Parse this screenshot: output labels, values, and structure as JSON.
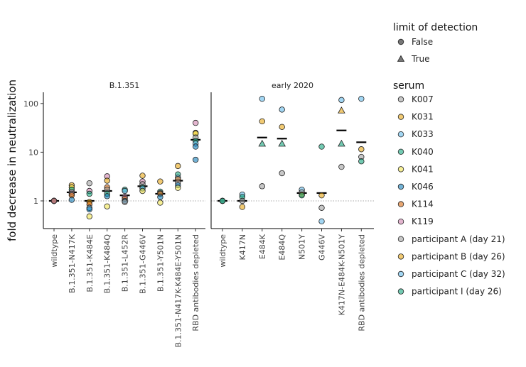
{
  "chart_data": {
    "type": "scatter",
    "ylabel": "fold decrease in neutralization",
    "yscale": "log",
    "ylim": [
      0.27,
      170
    ],
    "yticks": [
      1,
      10,
      100
    ],
    "ytick_labels": [
      "1",
      "10",
      "100"
    ],
    "reference_line_y": 1,
    "legend_position": "right",
    "legends": [
      {
        "title": "limit of detection",
        "entries": [
          {
            "label": "False",
            "shape": "circle"
          },
          {
            "label": "True",
            "shape": "triangle"
          }
        ]
      },
      {
        "title": "serum",
        "entries": [
          {
            "label": "K007",
            "color": "#999999"
          },
          {
            "label": "K031",
            "color": "#E69F00"
          },
          {
            "label": "K033",
            "color": "#56B4E9"
          },
          {
            "label": "K040",
            "color": "#009E73"
          },
          {
            "label": "K041",
            "color": "#F0E442"
          },
          {
            "label": "K046",
            "color": "#0072B2"
          },
          {
            "label": "K114",
            "color": "#D55E00"
          },
          {
            "label": "K119",
            "color": "#CC79A7"
          },
          {
            "label": "participant A (day 21)",
            "color": "#999999"
          },
          {
            "label": "participant B (day 26)",
            "color": "#E69F00"
          },
          {
            "label": "participant C (day 32)",
            "color": "#56B4E9"
          },
          {
            "label": "participant I (day 26)",
            "color": "#009E73"
          }
        ]
      }
    ],
    "facets": [
      {
        "title": "B.1.351",
        "categories": [
          "wildtype",
          "B.1.351-N417K",
          "B.1.351-K484E",
          "B.1.351-K484Q",
          "B.1.351-L452R",
          "B.1.351-G446V",
          "B.1.351-Y501N",
          "B.1.351-N417K-K484E-Y501N",
          "RBD antibodies depleted"
        ],
        "medians": [
          1.0,
          1.5,
          1.0,
          1.6,
          1.3,
          2.0,
          1.4,
          2.6,
          18
        ],
        "points": [
          [
            "wildtype",
            "K007",
            1.0,
            false
          ],
          [
            "wildtype",
            "K031",
            1.0,
            false
          ],
          [
            "wildtype",
            "K033",
            1.0,
            false
          ],
          [
            "wildtype",
            "K040",
            1.0,
            false
          ],
          [
            "wildtype",
            "K041",
            1.0,
            false
          ],
          [
            "wildtype",
            "K046",
            1.0,
            false
          ],
          [
            "wildtype",
            "K114",
            1.0,
            false
          ],
          [
            "wildtype",
            "K119",
            1.0,
            false
          ],
          [
            "B.1.351-N417K",
            "K031",
            2.1,
            false
          ],
          [
            "B.1.351-N417K",
            "K041",
            1.9,
            false
          ],
          [
            "B.1.351-N417K",
            "K040",
            1.7,
            false
          ],
          [
            "B.1.351-N417K",
            "K119",
            1.5,
            false
          ],
          [
            "B.1.351-N417K",
            "K007",
            1.4,
            false
          ],
          [
            "B.1.351-N417K",
            "K114",
            1.3,
            false
          ],
          [
            "B.1.351-N417K",
            "K046",
            1.05,
            false
          ],
          [
            "B.1.351-K484E",
            "K007",
            2.3,
            false
          ],
          [
            "B.1.351-K484E",
            "K119",
            1.6,
            false
          ],
          [
            "B.1.351-K484E",
            "K040",
            1.4,
            false
          ],
          [
            "B.1.351-K484E",
            "K031",
            0.95,
            false
          ],
          [
            "B.1.351-K484E",
            "K114",
            0.85,
            false
          ],
          [
            "B.1.351-K484E",
            "K033",
            0.72,
            false
          ],
          [
            "B.1.351-K484E",
            "K046",
            0.67,
            false
          ],
          [
            "B.1.351-K484E",
            "K041",
            0.48,
            false
          ],
          [
            "B.1.351-K484Q",
            "K119",
            3.2,
            false
          ],
          [
            "B.1.351-K484Q",
            "K031",
            2.6,
            false
          ],
          [
            "B.1.351-K484Q",
            "K114",
            1.9,
            false
          ],
          [
            "B.1.351-K484Q",
            "K007",
            1.7,
            false
          ],
          [
            "B.1.351-K484Q",
            "K040",
            1.4,
            false
          ],
          [
            "B.1.351-K484Q",
            "K046",
            1.25,
            false
          ],
          [
            "B.1.351-K484Q",
            "K041",
            0.77,
            false
          ],
          [
            "B.1.351-L452R",
            "K040",
            1.7,
            false
          ],
          [
            "B.1.351-L452R",
            "K033",
            1.6,
            false
          ],
          [
            "B.1.351-L452R",
            "K119",
            1.2,
            false
          ],
          [
            "B.1.351-L452R",
            "K114",
            1.1,
            false
          ],
          [
            "B.1.351-L452R",
            "K046",
            1.0,
            false
          ],
          [
            "B.1.351-L452R",
            "K007",
            0.95,
            false
          ],
          [
            "B.1.351-G446V",
            "K031",
            3.3,
            false
          ],
          [
            "B.1.351-G446V",
            "K119",
            2.5,
            false
          ],
          [
            "B.1.351-G446V",
            "K007",
            2.2,
            false
          ],
          [
            "B.1.351-G446V",
            "K040",
            1.9,
            false
          ],
          [
            "B.1.351-G446V",
            "K033",
            1.8,
            false
          ],
          [
            "B.1.351-G446V",
            "K041",
            1.6,
            false
          ],
          [
            "B.1.351-Y501N",
            "K031",
            2.5,
            false
          ],
          [
            "B.1.351-Y501N",
            "K040",
            1.55,
            false
          ],
          [
            "B.1.351-Y501N",
            "K007",
            1.45,
            false
          ],
          [
            "B.1.351-Y501N",
            "K114",
            1.4,
            false
          ],
          [
            "B.1.351-Y501N",
            "K046",
            1.2,
            false
          ],
          [
            "B.1.351-Y501N",
            "K041",
            0.92,
            false
          ],
          [
            "B.1.351-N417K-K484E-Y501N",
            "K031",
            5.2,
            false
          ],
          [
            "B.1.351-N417K-K484E-Y501N",
            "K040",
            3.5,
            false
          ],
          [
            "B.1.351-N417K-K484E-Y501N",
            "K033",
            3.0,
            false
          ],
          [
            "B.1.351-N417K-K484E-Y501N",
            "K114",
            2.8,
            false
          ],
          [
            "B.1.351-N417K-K484E-Y501N",
            "K007",
            2.4,
            false
          ],
          [
            "B.1.351-N417K-K484E-Y501N",
            "K046",
            2.1,
            false
          ],
          [
            "B.1.351-N417K-K484E-Y501N",
            "K041",
            1.85,
            false
          ],
          [
            "RBD antibodies depleted",
            "K119",
            40,
            false
          ],
          [
            "RBD antibodies depleted",
            "K031",
            25,
            false
          ],
          [
            "RBD antibodies depleted",
            "K041",
            24,
            false
          ],
          [
            "RBD antibodies depleted",
            "K007",
            20,
            false
          ],
          [
            "RBD antibodies depleted",
            "K040",
            17,
            false
          ],
          [
            "RBD antibodies depleted",
            "K033",
            15,
            false
          ],
          [
            "RBD antibodies depleted",
            "K046",
            13,
            false
          ],
          [
            "RBD antibodies depleted",
            "K046",
            7,
            false
          ]
        ]
      },
      {
        "title": "early 2020",
        "categories": [
          "wildtype",
          "K417N",
          "E484K",
          "E484Q",
          "N501Y",
          "G446V",
          "K417N-E484K-N501Y",
          "RBD antibodies depleted"
        ],
        "medians": [
          1.0,
          1.0,
          20,
          19,
          1.45,
          1.45,
          28,
          16
        ],
        "points": [
          [
            "wildtype",
            "participant A (day 21)",
            1.0,
            false
          ],
          [
            "wildtype",
            "participant B (day 26)",
            1.0,
            false
          ],
          [
            "wildtype",
            "participant C (day 32)",
            1.0,
            false
          ],
          [
            "wildtype",
            "participant I (day 26)",
            1.0,
            false
          ],
          [
            "K417N",
            "participant C (day 32)",
            1.35,
            false
          ],
          [
            "K417N",
            "participant I (day 26)",
            1.2,
            false
          ],
          [
            "K417N",
            "participant A (day 21)",
            1.0,
            false
          ],
          [
            "K417N",
            "participant B (day 26)",
            0.75,
            false
          ],
          [
            "E484K",
            "participant C (day 32)",
            125,
            false
          ],
          [
            "E484K",
            "participant B (day 26)",
            43,
            false
          ],
          [
            "E484K",
            "participant I (day 26)",
            15,
            true
          ],
          [
            "E484K",
            "participant A (day 21)",
            2.0,
            false
          ],
          [
            "E484Q",
            "participant C (day 32)",
            75,
            false
          ],
          [
            "E484Q",
            "participant B (day 26)",
            33,
            false
          ],
          [
            "E484Q",
            "participant I (day 26)",
            15,
            true
          ],
          [
            "E484Q",
            "participant A (day 21)",
            3.7,
            false
          ],
          [
            "N501Y",
            "participant C (day 32)",
            1.7,
            false
          ],
          [
            "N501Y",
            "participant A (day 21)",
            1.5,
            false
          ],
          [
            "N501Y",
            "participant B (day 26)",
            1.35,
            false
          ],
          [
            "N501Y",
            "participant I (day 26)",
            1.3,
            false
          ],
          [
            "G446V",
            "participant I (day 26)",
            13,
            false
          ],
          [
            "G446V",
            "participant B (day 26)",
            1.3,
            false
          ],
          [
            "G446V",
            "participant A (day 21)",
            0.72,
            false
          ],
          [
            "G446V",
            "participant C (day 32)",
            0.38,
            false
          ],
          [
            "K417N-E484K-N501Y",
            "participant C (day 32)",
            118,
            false
          ],
          [
            "K417N-E484K-N501Y",
            "participant B (day 26)",
            72,
            true
          ],
          [
            "K417N-E484K-N501Y",
            "participant I (day 26)",
            15,
            true
          ],
          [
            "K417N-E484K-N501Y",
            "participant A (day 21)",
            5.0,
            false
          ],
          [
            "RBD antibodies depleted",
            "participant C (day 32)",
            125,
            false
          ],
          [
            "RBD antibodies depleted",
            "participant B (day 26)",
            11.5,
            false
          ],
          [
            "RBD antibodies depleted",
            "participant A (day 21)",
            8.0,
            false
          ],
          [
            "RBD antibodies depleted",
            "participant I (day 26)",
            6.5,
            false
          ]
        ]
      }
    ]
  }
}
